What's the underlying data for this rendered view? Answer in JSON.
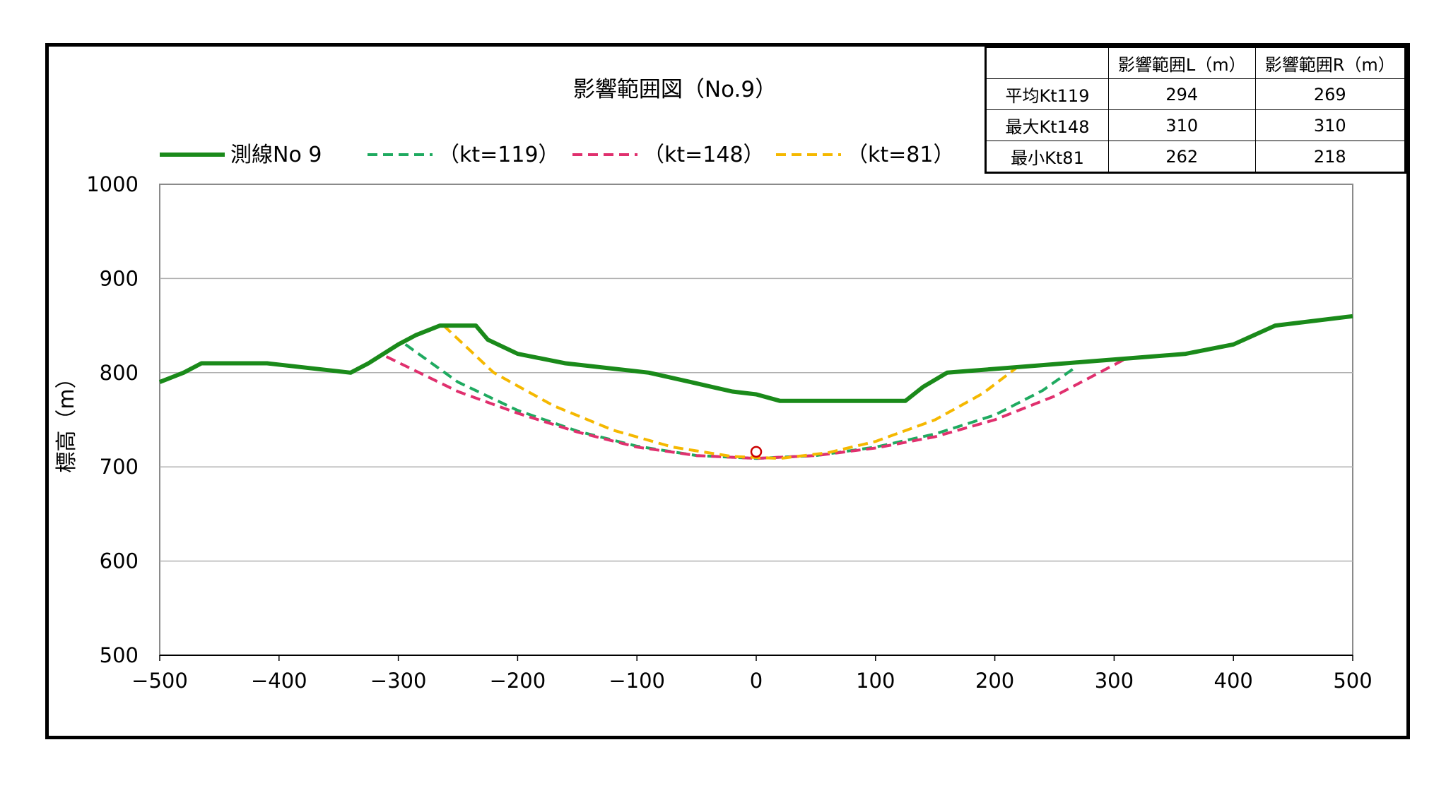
{
  "chart_data": {
    "type": "line",
    "title": "影響範囲図（No.9）",
    "xlabel": "",
    "ylabel": "標高（m）",
    "xlim": [
      -500,
      500
    ],
    "ylim": [
      500,
      1000
    ],
    "x_ticks": [
      "−500",
      "−400",
      "−300",
      "−200",
      "−100",
      "0",
      "100",
      "200",
      "300",
      "400",
      "500"
    ],
    "y_ticks": [
      "500",
      "600",
      "700",
      "800",
      "900",
      "1000"
    ],
    "gridlines_y": true,
    "legend_position": "top",
    "series": [
      {
        "name": "測線No 9",
        "style": "solid",
        "color": "#1a8a1a",
        "points": [
          [
            -500,
            790
          ],
          [
            -480,
            800
          ],
          [
            -465,
            810
          ],
          [
            -410,
            810
          ],
          [
            -340,
            800
          ],
          [
            -325,
            810
          ],
          [
            -300,
            830
          ],
          [
            -285,
            840
          ],
          [
            -265,
            850
          ],
          [
            -235,
            850
          ],
          [
            -225,
            835
          ],
          [
            -200,
            820
          ],
          [
            -160,
            810
          ],
          [
            -90,
            800
          ],
          [
            -55,
            790
          ],
          [
            -20,
            780
          ],
          [
            0,
            777
          ],
          [
            20,
            770
          ],
          [
            125,
            770
          ],
          [
            140,
            785
          ],
          [
            160,
            800
          ],
          [
            240,
            808
          ],
          [
            300,
            814
          ],
          [
            360,
            820
          ],
          [
            400,
            830
          ],
          [
            435,
            850
          ],
          [
            500,
            860
          ]
        ]
      },
      {
        "name": "（kt=119）",
        "style": "dashed",
        "color": "#1faa60",
        "points": [
          [
            -294,
            830
          ],
          [
            -250,
            790
          ],
          [
            -200,
            760
          ],
          [
            -150,
            738
          ],
          [
            -100,
            722
          ],
          [
            -50,
            712
          ],
          [
            0,
            709
          ],
          [
            50,
            712
          ],
          [
            100,
            721
          ],
          [
            150,
            735
          ],
          [
            200,
            755
          ],
          [
            240,
            781
          ],
          [
            269,
            807
          ]
        ]
      },
      {
        "name": "（kt=148）",
        "style": "dashed",
        "color": "#e0306e",
        "points": [
          [
            -310,
            817
          ],
          [
            -250,
            780
          ],
          [
            -200,
            757
          ],
          [
            -150,
            737
          ],
          [
            -100,
            721
          ],
          [
            -50,
            712
          ],
          [
            0,
            709
          ],
          [
            50,
            712
          ],
          [
            100,
            720
          ],
          [
            150,
            732
          ],
          [
            200,
            750
          ],
          [
            250,
            775
          ],
          [
            310,
            815
          ]
        ]
      },
      {
        "name": "（kt=81）",
        "style": "dashed",
        "color": "#f5b800",
        "points": [
          [
            -262,
            850
          ],
          [
            -220,
            800
          ],
          [
            -170,
            765
          ],
          [
            -120,
            739
          ],
          [
            -70,
            721
          ],
          [
            -20,
            711
          ],
          [
            20,
            709
          ],
          [
            60,
            715
          ],
          [
            100,
            727
          ],
          [
            150,
            750
          ],
          [
            190,
            778
          ],
          [
            218,
            805
          ]
        ]
      }
    ],
    "markers": [
      {
        "type": "circle",
        "x": 0,
        "y": 716,
        "color": "#cc0000"
      }
    ]
  },
  "table": {
    "headers": [
      "",
      "影響範囲L（m）",
      "影響範囲R（m）"
    ],
    "rows": [
      [
        "平均Kt119",
        "294",
        "269"
      ],
      [
        "最大Kt148",
        "310",
        "310"
      ],
      [
        "最小Kt81",
        "262",
        "218"
      ]
    ]
  }
}
